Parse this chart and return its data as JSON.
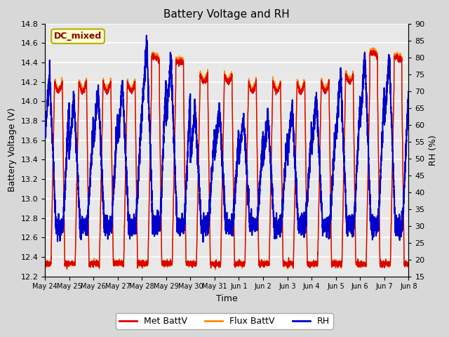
{
  "title": "Battery Voltage and RH",
  "xlabel": "Time",
  "ylabel_left": "Battery Voltage (V)",
  "ylabel_right": "RH (%)",
  "ylim_left": [
    12.2,
    14.8
  ],
  "ylim_right": [
    15,
    90
  ],
  "yticks_left": [
    12.2,
    12.4,
    12.6,
    12.8,
    13.0,
    13.2,
    13.4,
    13.6,
    13.8,
    14.0,
    14.2,
    14.4,
    14.6,
    14.8
  ],
  "yticks_right": [
    15,
    20,
    25,
    30,
    35,
    40,
    45,
    50,
    55,
    60,
    65,
    70,
    75,
    80,
    85,
    90
  ],
  "xtick_labels": [
    "May 24",
    "May 25",
    "May 26",
    "May 27",
    "May 28",
    "May 29",
    "May 30",
    "May 31",
    "Jun 1",
    "Jun 2",
    "Jun 3",
    "Jun 4",
    "Jun 5",
    "Jun 6",
    "Jun 7",
    "Jun 8"
  ],
  "color_met": "#dd0000",
  "color_flux": "#ff8800",
  "color_rh": "#0000cc",
  "label_met": "Met BattV",
  "label_flux": "Flux BattV",
  "label_rh": "RH",
  "annotation_text": "DC_mixed",
  "annotation_color": "#8b0000",
  "annotation_bg": "#ffffcc",
  "annotation_border": "#bbaa00",
  "bg_color": "#d8d8d8",
  "plot_bg": "#e8e8e8",
  "grid_color": "#ffffff",
  "linewidth_batt": 1.0,
  "linewidth_rh": 1.5,
  "num_days": 15,
  "pts_per_day": 288
}
